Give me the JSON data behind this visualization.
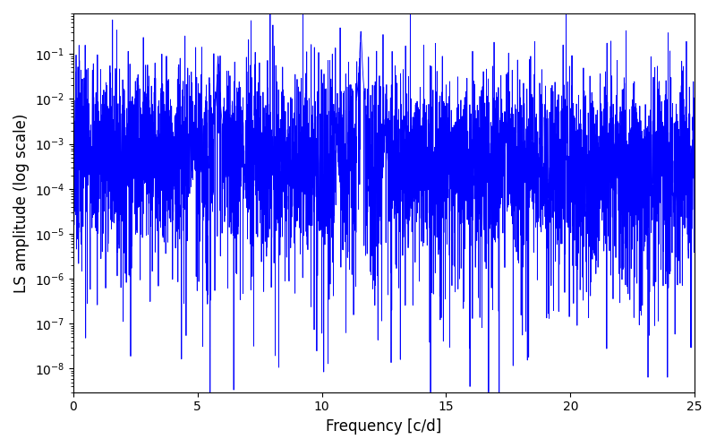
{
  "xlabel": "Frequency [c/d]",
  "ylabel": "LS amplitude (log scale)",
  "xlim": [
    0,
    25
  ],
  "ylim_min": 3e-09,
  "ylim_max": 0.8,
  "line_color": "#0000ff",
  "background_color": "#ffffff",
  "figsize": [
    8.0,
    5.0
  ],
  "dpi": 100,
  "peak1_freq": 5.83,
  "peak1_amp": 0.09,
  "peak2_freq": 11.57,
  "peak2_amp": 0.32,
  "peak3_freq": 17.4,
  "peak3_amp": 0.0013,
  "baseline": 0.0003,
  "seed": 7
}
